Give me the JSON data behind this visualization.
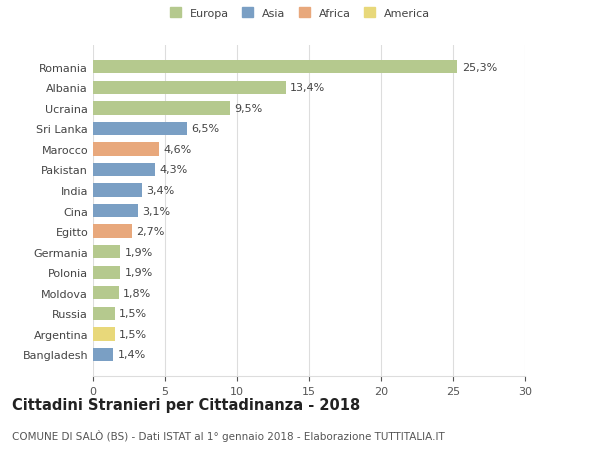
{
  "categories": [
    "Romania",
    "Albania",
    "Ucraina",
    "Sri Lanka",
    "Marocco",
    "Pakistan",
    "India",
    "Cina",
    "Egitto",
    "Germania",
    "Polonia",
    "Moldova",
    "Russia",
    "Argentina",
    "Bangladesh"
  ],
  "values": [
    25.3,
    13.4,
    9.5,
    6.5,
    4.6,
    4.3,
    3.4,
    3.1,
    2.7,
    1.9,
    1.9,
    1.8,
    1.5,
    1.5,
    1.4
  ],
  "labels": [
    "25,3%",
    "13,4%",
    "9,5%",
    "6,5%",
    "4,6%",
    "4,3%",
    "3,4%",
    "3,1%",
    "2,7%",
    "1,9%",
    "1,9%",
    "1,8%",
    "1,5%",
    "1,5%",
    "1,4%"
  ],
  "bar_colors": [
    "#b5c98e",
    "#b5c98e",
    "#b5c98e",
    "#7a9fc4",
    "#e8a87c",
    "#7a9fc4",
    "#7a9fc4",
    "#7a9fc4",
    "#e8a87c",
    "#b5c98e",
    "#b5c98e",
    "#b5c98e",
    "#b5c98e",
    "#e8d87a",
    "#7a9fc4"
  ],
  "legend_labels": [
    "Europa",
    "Asia",
    "Africa",
    "America"
  ],
  "legend_colors": [
    "#b5c98e",
    "#7a9fc4",
    "#e8a87c",
    "#e8d87a"
  ],
  "title": "Cittadini Stranieri per Cittadinanza - 2018",
  "subtitle": "COMUNE DI SALÒ (BS) - Dati ISTAT al 1° gennaio 2018 - Elaborazione TUTTITALIA.IT",
  "xlim": [
    0,
    30
  ],
  "xticks": [
    0,
    5,
    10,
    15,
    20,
    25,
    30
  ],
  "bg_color": "#ffffff",
  "grid_color": "#dddddd",
  "bar_height": 0.65,
  "label_fontsize": 8.0,
  "tick_fontsize": 8.0,
  "title_fontsize": 10.5,
  "subtitle_fontsize": 7.5
}
